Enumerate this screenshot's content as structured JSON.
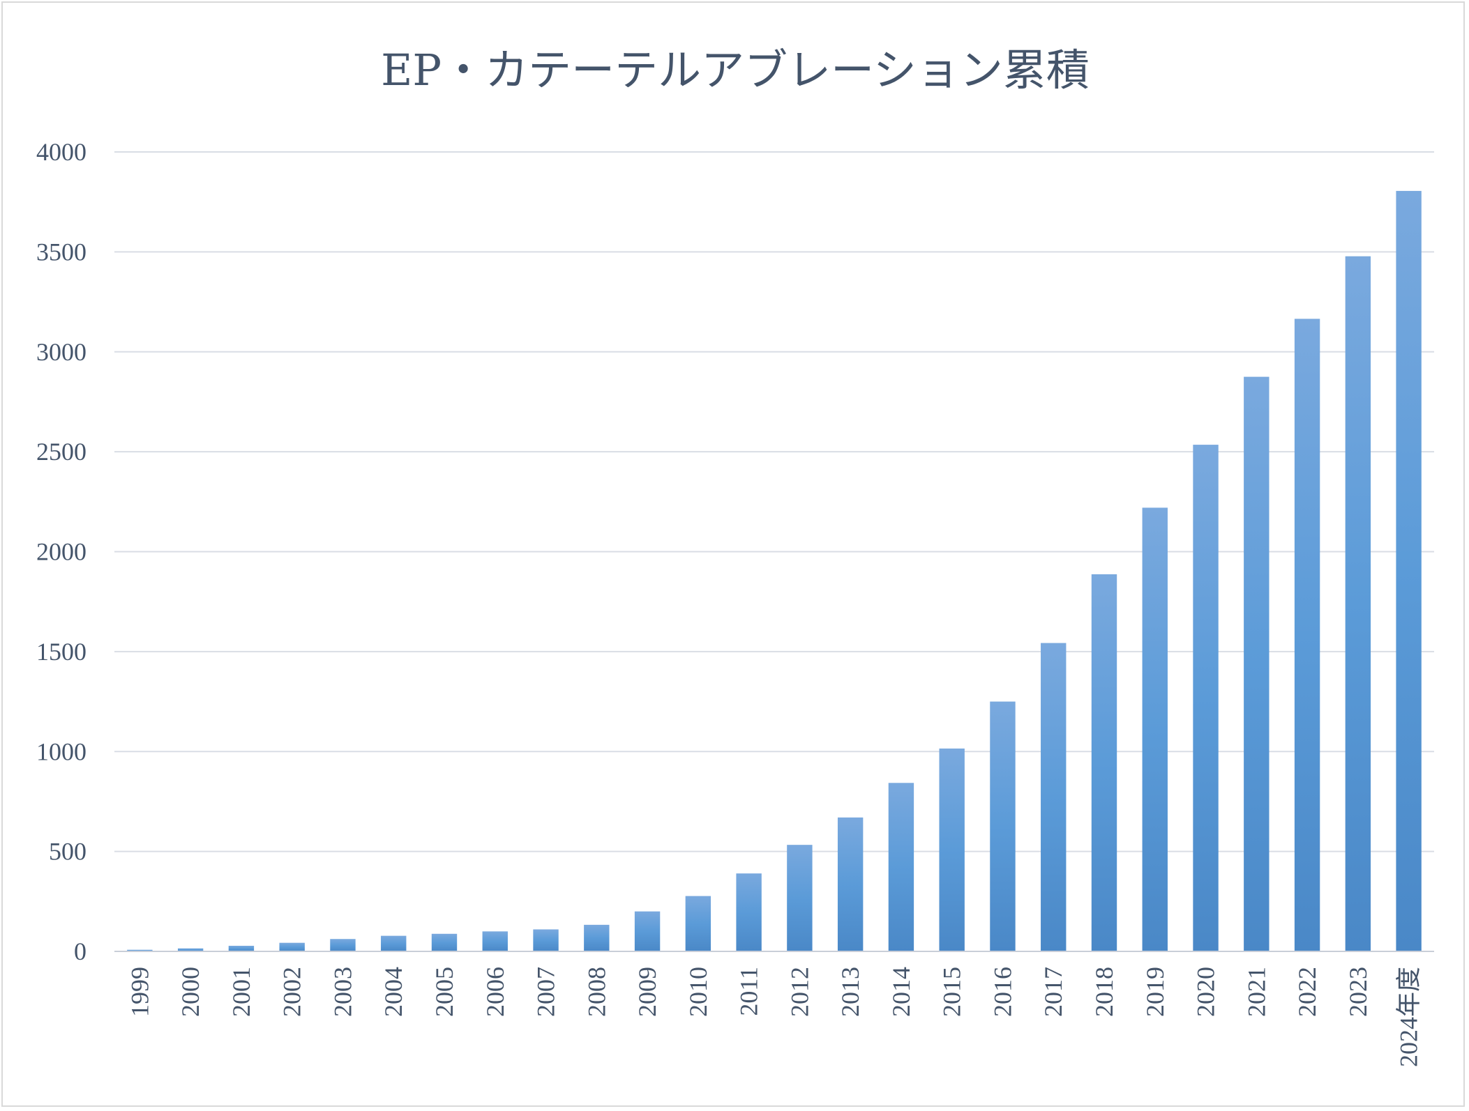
{
  "chart_data": {
    "type": "bar",
    "title": "EP・カテーテルアブレーション累積",
    "xlabel": "",
    "ylabel": "",
    "categories": [
      "1999",
      "2000",
      "2001",
      "2002",
      "2003",
      "2004",
      "2005",
      "2006",
      "2007",
      "2008",
      "2009",
      "2010",
      "2011",
      "2012",
      "2013",
      "2014",
      "2015",
      "2016",
      "2017",
      "2018",
      "2019",
      "2020",
      "2021",
      "2022",
      "2023",
      "2024年度"
    ],
    "values": [
      8,
      15,
      28,
      43,
      62,
      78,
      88,
      100,
      110,
      133,
      200,
      277,
      390,
      533,
      670,
      843,
      1015,
      1250,
      1543,
      1887,
      2220,
      2535,
      2875,
      3165,
      3478,
      3805
    ],
    "ylim": [
      0,
      4000
    ],
    "yticks": [
      0,
      500,
      1000,
      1500,
      2000,
      2500,
      3000,
      3500,
      4000
    ],
    "grid": true,
    "legend": "none",
    "colors": {
      "bar_top": "#7aa9de",
      "bar_mid": "#5b9bd8",
      "bar_bottom": "#4a88c7",
      "grid": "#d9dde5",
      "axis": "#c9ced8",
      "text": "#44546a",
      "border": "#d9d9d9"
    }
  }
}
